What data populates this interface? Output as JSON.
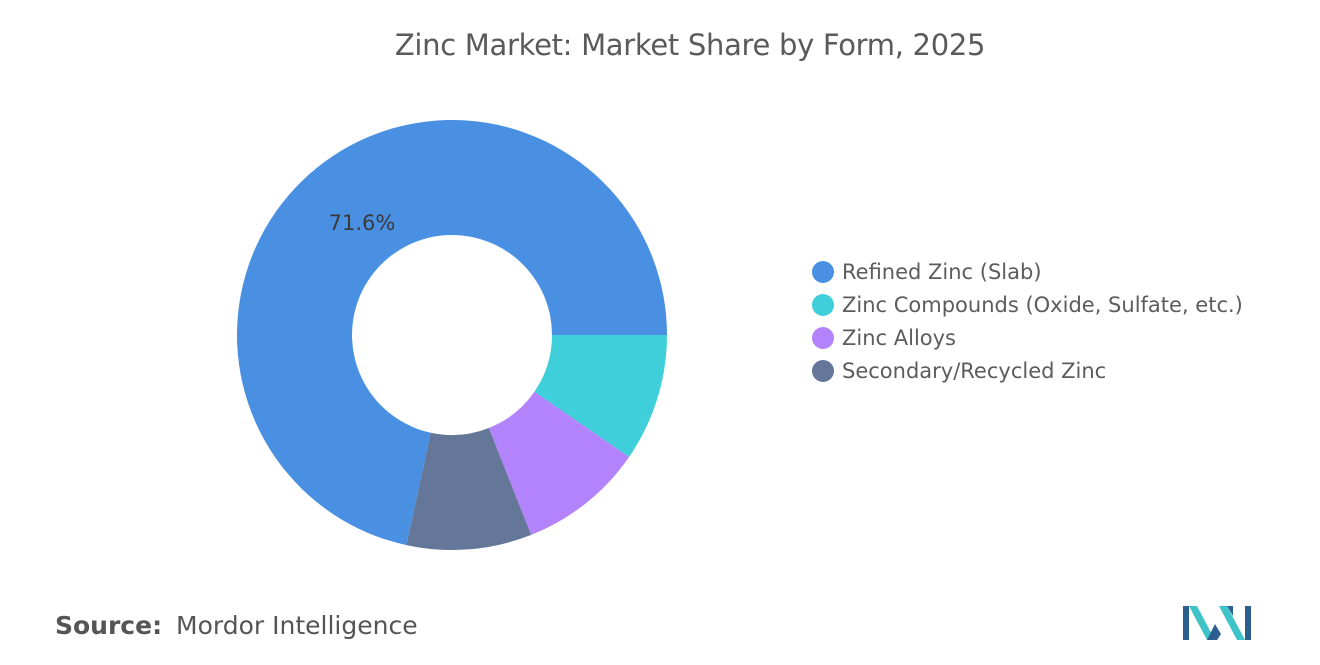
{
  "chart_data": {
    "type": "pie",
    "donut": true,
    "title": "Zinc Market: Market Share by Form, 2025",
    "categories": [
      "Refined Zinc (Slab)",
      "Zinc Compounds (Oxide, Sulfate, etc.)",
      "Zinc Alloys",
      "Secondary/Recycled Zinc"
    ],
    "values": [
      71.6,
      9.6,
      9.4,
      9.4
    ],
    "colors": [
      "#4a90e2",
      "#3ecfda",
      "#b383fb",
      "#647799"
    ],
    "data_labels": [
      {
        "category": "Refined Zinc (Slab)",
        "text": "71.6%"
      }
    ],
    "legend_position": "right"
  },
  "source": {
    "label": "Source:",
    "value": "Mordor Intelligence"
  },
  "logo_icon": "mordor-intelligence-logo-icon"
}
